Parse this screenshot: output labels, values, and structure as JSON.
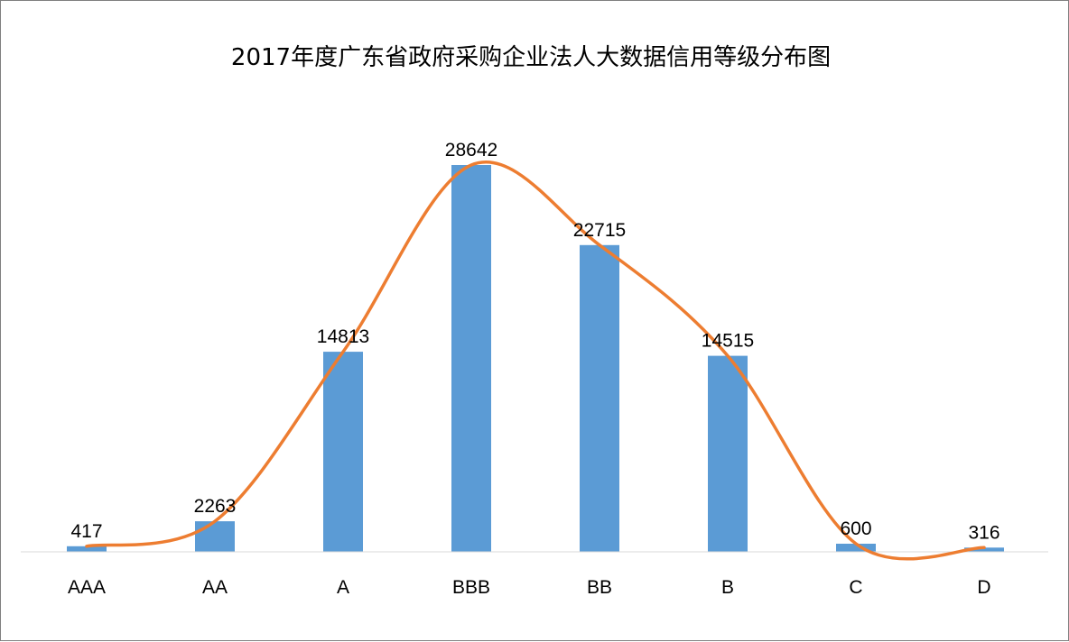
{
  "chart_data": {
    "type": "bar",
    "title": "2017年度广东省政府采购企业法人大数据信用等级分布图",
    "categories": [
      "AAA",
      "AA",
      "A",
      "BBB",
      "BB",
      "B",
      "C",
      "D"
    ],
    "series": [
      {
        "values": [
          417,
          2263,
          14813,
          28642,
          22715,
          14515,
          600,
          316
        ],
        "type": "bar",
        "color": "#5b9bd5"
      },
      {
        "values": [
          417,
          2263,
          14813,
          28642,
          22715,
          14515,
          600,
          316
        ],
        "type": "line",
        "smooth": true,
        "color": "#ed7d31"
      }
    ],
    "data_labels": true,
    "ylim": [
      0,
      28642
    ],
    "grid": false,
    "legend": "none"
  }
}
